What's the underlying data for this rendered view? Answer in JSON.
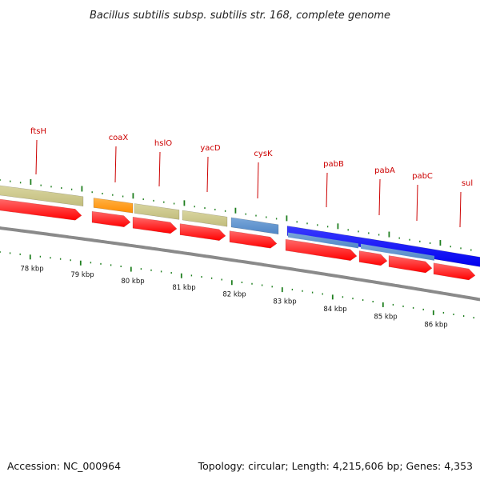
{
  "title": "Bacillus subtilis subsp. subtilis str. 168, complete genome",
  "footer": {
    "accession": "Accession: NC_000964",
    "summary": "Topology: circular; Length: 4,215,606 bp; Genes: 4,353"
  },
  "colors": {
    "backbone": "#8a8a8a",
    "cds": "#ff0000",
    "tan": "#c2bd7d",
    "orange": "#ff8c00",
    "steel": "#4f86c6",
    "blue": "#0000ee",
    "tick": "#1f7f1f",
    "label": "#cc0000"
  },
  "scale": {
    "unit": "kbp",
    "labels": [
      "78 kbp",
      "79 kbp",
      "80 kbp",
      "81 kbp",
      "82 kbp",
      "83 kbp",
      "84 kbp",
      "85 kbp",
      "86 kbp"
    ]
  },
  "genes": [
    {
      "name": "ftsH"
    },
    {
      "name": "coaX"
    },
    {
      "name": "hslO"
    },
    {
      "name": "yacD"
    },
    {
      "name": "cysK"
    },
    {
      "name": "pabB"
    },
    {
      "name": "pabA"
    },
    {
      "name": "pabC"
    },
    {
      "name": "sul"
    }
  ]
}
